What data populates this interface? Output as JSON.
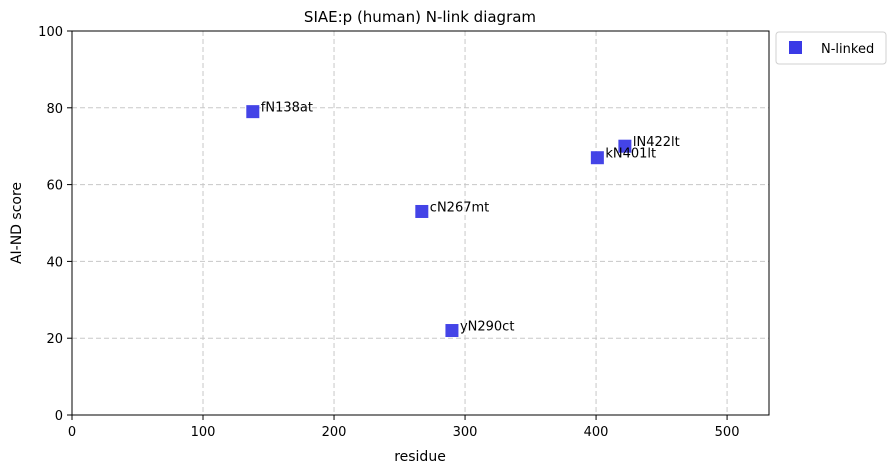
{
  "chart_data": {
    "type": "scatter",
    "title": "SIAE:p (human) N-link diagram",
    "xlabel": "residue",
    "ylabel": "AI-ND score",
    "xlim": [
      0,
      532
    ],
    "ylim": [
      0,
      100
    ],
    "xticks": [
      0,
      100,
      200,
      300,
      400,
      500
    ],
    "yticks": [
      0,
      20,
      40,
      60,
      80,
      100
    ],
    "grid": true,
    "legend_position": "outside-top-right",
    "series": [
      {
        "name": "N-linked",
        "color": "#3a3ae6",
        "marker": "square",
        "points": [
          {
            "x": 138,
            "y": 79,
            "label": "fN138at"
          },
          {
            "x": 267,
            "y": 53,
            "label": "cN267mt"
          },
          {
            "x": 290,
            "y": 22,
            "label": "yN290ct"
          },
          {
            "x": 401,
            "y": 67,
            "label": "kN401lt"
          },
          {
            "x": 422,
            "y": 70,
            "label": "lN422lt"
          }
        ]
      }
    ]
  }
}
